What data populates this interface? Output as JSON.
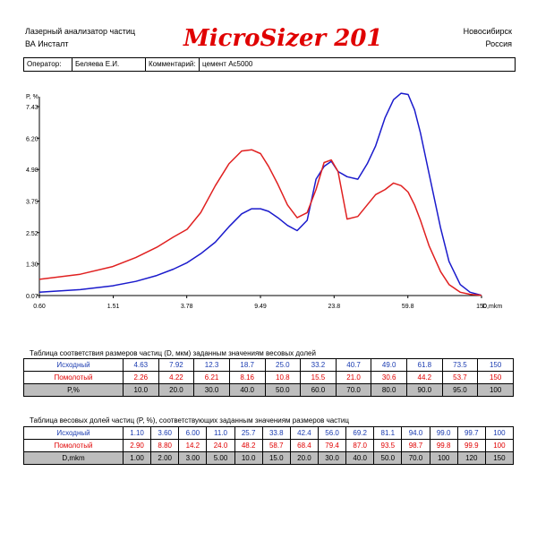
{
  "header": {
    "left_line1": "Лазерный анализатор частиц",
    "left_line2": "ВА Инсталт",
    "brand": "MicroSizer 201",
    "right_line1": "Новосибирск",
    "right_line2": "Россия"
  },
  "info": {
    "operator_label": "Оператор:",
    "operator_value": "Беляева Е.И.",
    "comment_label": "Комментарий:",
    "comment_value": "цемент Ас5000"
  },
  "colors": {
    "source": "#1a1acc",
    "ground": "#e02020"
  },
  "chart_data": {
    "type": "line",
    "ylabel": "P, %",
    "xlabel": "D,mkm",
    "y_ticks": [
      "7.43",
      "6.20",
      "4.98",
      "3.75",
      "2.52",
      "1.30",
      "0.07"
    ],
    "y_tick_values": [
      7.43,
      6.2,
      4.98,
      3.75,
      2.52,
      1.3,
      0.07
    ],
    "x_ticks": [
      "0.60",
      "1.51",
      "3.78",
      "9.49",
      "23.8",
      "59.8",
      "150"
    ],
    "x_tick_values": [
      0.6,
      1.51,
      3.78,
      9.49,
      23.8,
      59.8,
      150
    ],
    "x_scale": "log",
    "xlim": [
      0.6,
      150
    ],
    "ylim": [
      0.07,
      7.43
    ],
    "grid": false,
    "series": [
      {
        "name": "Исходный",
        "color": "#1a1acc",
        "x": [
          0.6,
          1.0,
          1.5,
          2.0,
          2.6,
          3.2,
          3.8,
          4.5,
          5.4,
          6.4,
          7.5,
          8.5,
          9.5,
          10.5,
          11.8,
          13.3,
          15.0,
          17.0,
          19.0,
          21.0,
          23.0,
          25.0,
          28.0,
          32.0,
          36.0,
          40.0,
          45.0,
          50.0,
          55.0,
          60.0,
          65.0,
          70.0,
          78.0,
          90.0,
          100.0,
          115.0,
          130.0,
          150.0
        ],
        "y": [
          0.2,
          0.3,
          0.45,
          0.62,
          0.85,
          1.1,
          1.35,
          1.7,
          2.15,
          2.75,
          3.25,
          3.45,
          3.45,
          3.35,
          3.1,
          2.8,
          2.6,
          3.0,
          4.6,
          5.1,
          5.3,
          4.9,
          4.7,
          4.6,
          5.2,
          5.9,
          7.0,
          7.7,
          7.95,
          7.9,
          7.3,
          6.4,
          4.8,
          2.7,
          1.4,
          0.5,
          0.2,
          0.08
        ]
      },
      {
        "name": "Помолотый",
        "color": "#e02020",
        "x": [
          0.6,
          1.0,
          1.5,
          2.0,
          2.6,
          3.2,
          3.8,
          4.5,
          5.4,
          6.4,
          7.5,
          8.5,
          9.5,
          10.5,
          11.8,
          13.3,
          15.0,
          17.0,
          19.0,
          21.0,
          23.0,
          25.0,
          28.0,
          32.0,
          36.0,
          40.0,
          45.0,
          50.0,
          55.0,
          60.0,
          65.0,
          70.0,
          78.0,
          90.0,
          100.0,
          115.0,
          130.0,
          150.0
        ],
        "y": [
          0.7,
          0.9,
          1.2,
          1.55,
          1.95,
          2.35,
          2.65,
          3.3,
          4.35,
          5.2,
          5.7,
          5.75,
          5.6,
          5.1,
          4.4,
          3.6,
          3.1,
          3.3,
          4.2,
          5.25,
          5.35,
          4.9,
          3.05,
          3.15,
          3.6,
          4.0,
          4.2,
          4.45,
          4.35,
          4.1,
          3.6,
          3.0,
          2.0,
          1.0,
          0.5,
          0.2,
          0.12,
          0.08
        ]
      }
    ]
  },
  "table1": {
    "caption": "Таблица соответствия размеров частиц (D, мкм) заданным значениям весовых долей",
    "rows": [
      {
        "label": "Исходный",
        "values": [
          "4.63",
          "7.92",
          "12.3",
          "18.7",
          "25.0",
          "33.2",
          "40.7",
          "49.0",
          "61.8",
          "73.5",
          "150"
        ]
      },
      {
        "label": "Помолотый",
        "values": [
          "2.26",
          "4.22",
          "6.21",
          "8.16",
          "10.8",
          "15.5",
          "21.0",
          "30.6",
          "44.2",
          "53.7",
          "150"
        ]
      },
      {
        "label": "P,%",
        "values": [
          "10.0",
          "20.0",
          "30.0",
          "40.0",
          "50.0",
          "60.0",
          "70.0",
          "80.0",
          "90.0",
          "95.0",
          "100"
        ]
      }
    ]
  },
  "table2": {
    "caption": "Таблица весовых долей частиц (P, %), соответствующих заданным значениям размеров частиц",
    "rows": [
      {
        "label": "Исходный",
        "values": [
          "1.10",
          "3.60",
          "6.00",
          "11.0",
          "25.7",
          "33.8",
          "42.4",
          "56.0",
          "69.2",
          "81.1",
          "94.0",
          "99.0",
          "99.7",
          "100"
        ]
      },
      {
        "label": "Помолотый",
        "values": [
          "2.90",
          "8.80",
          "14.2",
          "24.0",
          "48.2",
          "58.7",
          "68.4",
          "79.4",
          "87.0",
          "93.5",
          "98.7",
          "99.8",
          "99.9",
          "100"
        ]
      },
      {
        "label": "D,mkm",
        "values": [
          "1.00",
          "2.00",
          "3.00",
          "5.00",
          "10.0",
          "15.0",
          "20.0",
          "30.0",
          "40.0",
          "50.0",
          "70.0",
          "100",
          "120",
          "150"
        ]
      }
    ]
  }
}
